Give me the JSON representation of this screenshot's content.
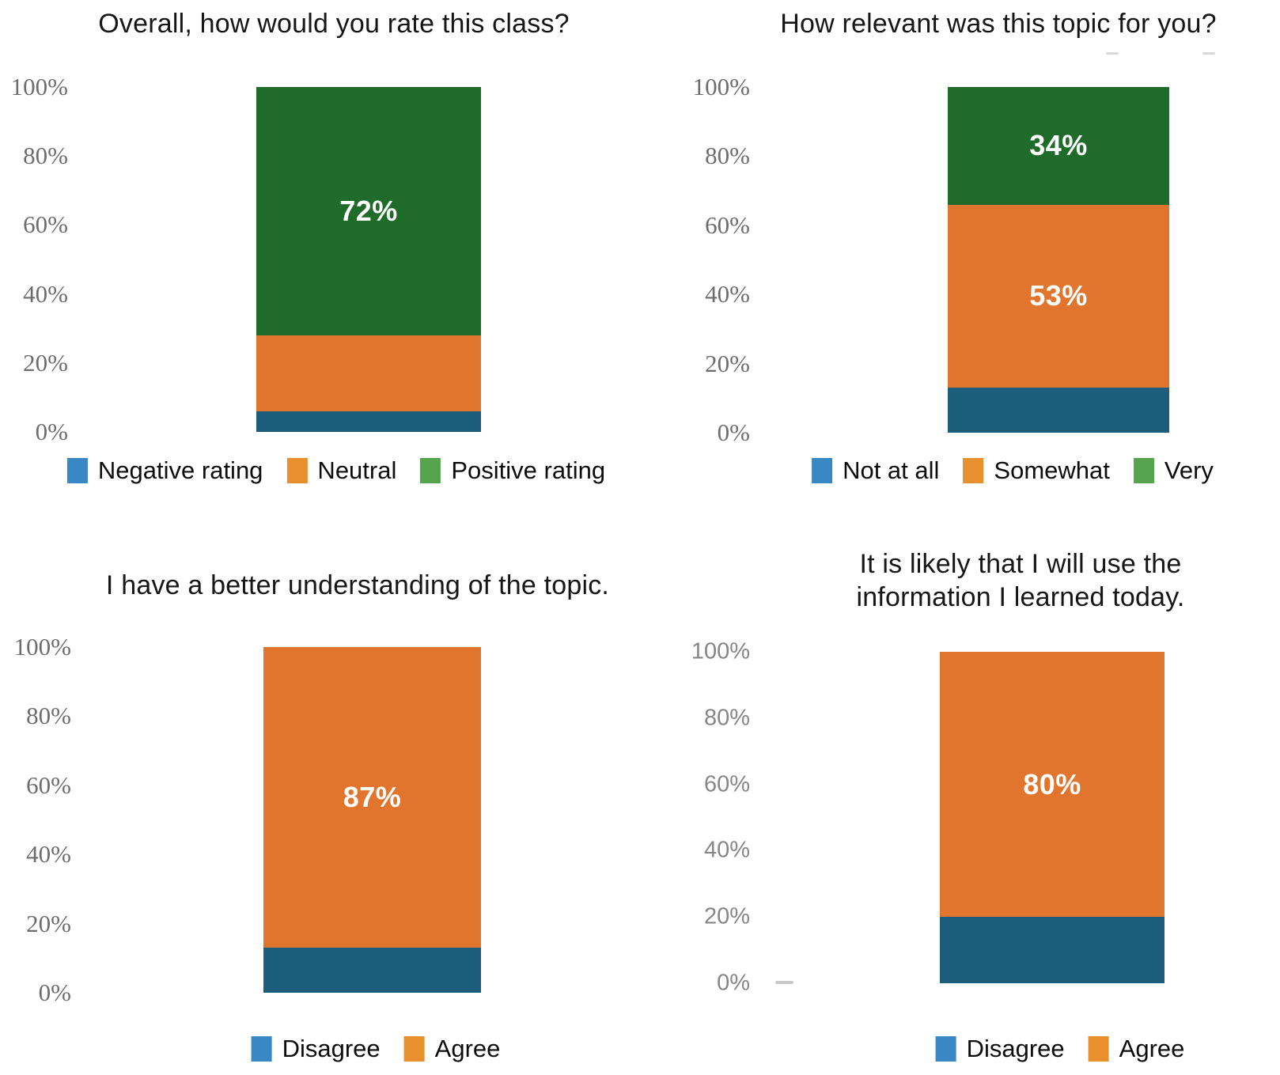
{
  "page": {
    "background": "#ffffff"
  },
  "chart_data": [
    {
      "type": "bar",
      "stacked": true,
      "title": "Overall, how would you rate this class?",
      "categories": [
        ""
      ],
      "ylim": [
        0,
        100
      ],
      "y_tick_labels": [
        "100%",
        "80%",
        "60%",
        "40%",
        "20%",
        "0%"
      ],
      "grid": false,
      "legend_position": "bottom",
      "series": [
        {
          "name": "Negative rating",
          "values": [
            6
          ],
          "bar_color": "#1c5d7c",
          "legend_color": "#3a87c5",
          "data_label": ""
        },
        {
          "name": "Neutral",
          "values": [
            22
          ],
          "bar_color": "#e2752e",
          "legend_color": "#e8902e",
          "data_label": ""
        },
        {
          "name": "Positive rating",
          "values": [
            72
          ],
          "bar_color": "#1e6b2a",
          "legend_color": "#56a44e",
          "data_label": "72%"
        }
      ]
    },
    {
      "type": "bar",
      "stacked": true,
      "title": "How relevant was this topic for you?",
      "categories": [
        ""
      ],
      "ylim": [
        0,
        100
      ],
      "y_tick_labels": [
        "100%",
        "80%",
        "60%",
        "40%",
        "20%",
        "0%"
      ],
      "grid": false,
      "legend_position": "bottom",
      "series": [
        {
          "name": "Not at all",
          "values": [
            13
          ],
          "bar_color": "#1c5d7c",
          "legend_color": "#3a87c5",
          "data_label": ""
        },
        {
          "name": "Somewhat",
          "values": [
            53
          ],
          "bar_color": "#e2752e",
          "legend_color": "#e8902e",
          "data_label": "53%"
        },
        {
          "name": "Very",
          "values": [
            34
          ],
          "bar_color": "#1e6b2a",
          "legend_color": "#56a44e",
          "data_label": "34%"
        }
      ]
    },
    {
      "type": "bar",
      "stacked": true,
      "title": "I have a better understanding of the topic.",
      "categories": [
        ""
      ],
      "ylim": [
        0,
        100
      ],
      "y_tick_labels": [
        "100%",
        "80%",
        "60%",
        "40%",
        "20%",
        "0%"
      ],
      "grid": false,
      "legend_position": "bottom",
      "series": [
        {
          "name": "Disagree",
          "values": [
            13
          ],
          "bar_color": "#1c5d7c",
          "legend_color": "#3a87c5",
          "data_label": ""
        },
        {
          "name": "Agree",
          "values": [
            87
          ],
          "bar_color": "#e2752e",
          "legend_color": "#e8902e",
          "data_label": "87%"
        }
      ]
    },
    {
      "type": "bar",
      "stacked": true,
      "title": "It is likely that I will use the\ninformation I learned today.",
      "categories": [
        ""
      ],
      "ylim": [
        0,
        100
      ],
      "y_tick_labels": [
        "100%",
        "80%",
        "60%",
        "40%",
        "20%",
        "0%"
      ],
      "grid": false,
      "legend_position": "bottom",
      "series": [
        {
          "name": "Disagree",
          "values": [
            20
          ],
          "bar_color": "#1c5d7c",
          "legend_color": "#3a87c5",
          "data_label": ""
        },
        {
          "name": "Agree",
          "values": [
            80
          ],
          "bar_color": "#e2752e",
          "legend_color": "#e8902e",
          "data_label": "80%"
        }
      ]
    }
  ]
}
